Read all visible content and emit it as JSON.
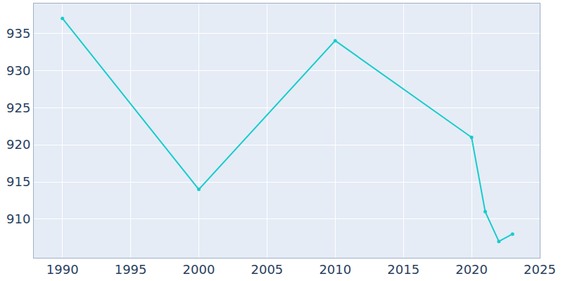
{
  "chart_data": {
    "type": "line",
    "x": [
      1990,
      2000,
      2010,
      2020,
      2021,
      2022,
      2023
    ],
    "values": [
      937,
      914,
      934,
      921,
      911,
      907,
      908
    ],
    "color": "#17cccc",
    "marker": "circle",
    "xlim": [
      1987.9,
      2025
    ],
    "xticks": [
      1990,
      1995,
      2000,
      2005,
      2010,
      2015,
      2020,
      2025
    ],
    "ylim": [
      904.8,
      939
    ],
    "yticks": [
      910,
      915,
      920,
      925,
      930,
      935
    ],
    "grid": true
  }
}
